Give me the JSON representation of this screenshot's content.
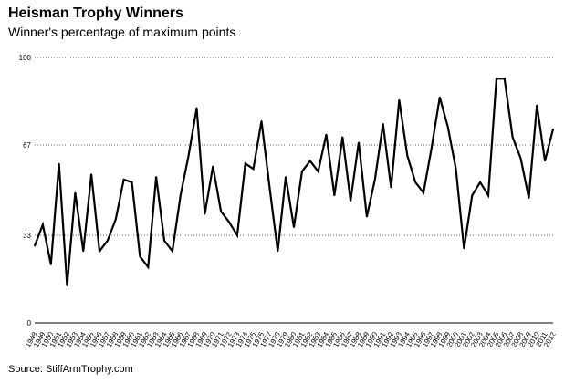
{
  "chart_data": {
    "type": "line",
    "title": "Heisman Trophy Winners",
    "subtitle": "Winner's percentage of maximum points",
    "source": "Source: StiffArmTrophy.com",
    "xlabel": "",
    "ylabel": "",
    "ylim": [
      0,
      100
    ],
    "yticks": [
      0,
      33,
      67,
      100
    ],
    "grid": true,
    "categories": [
      "1948",
      "1949",
      "1950",
      "1951",
      "1952",
      "1953",
      "1954",
      "1955",
      "1956",
      "1957",
      "1958",
      "1959",
      "1960",
      "1961",
      "1962",
      "1963",
      "1964",
      "1965",
      "1966",
      "1967",
      "1968",
      "1969",
      "1970",
      "1971",
      "1972",
      "1973",
      "1974",
      "1975",
      "1976",
      "1977",
      "1978",
      "1979",
      "1980",
      "1981",
      "1982",
      "1983",
      "1984",
      "1985",
      "1986",
      "1987",
      "1988",
      "1989",
      "1990",
      "1991",
      "1992",
      "1993",
      "1994",
      "1995",
      "1996",
      "1997",
      "1998",
      "1999",
      "2000",
      "2001",
      "2002",
      "2003",
      "2004",
      "2005",
      "2006",
      "2007",
      "2008",
      "2009",
      "2010",
      "2011",
      "2012"
    ],
    "series": [
      {
        "values": [
          29,
          37,
          22,
          60,
          14,
          49,
          27,
          56,
          27,
          31,
          39,
          54,
          53,
          25,
          21,
          55,
          31,
          27,
          48,
          63,
          81,
          41,
          59,
          42,
          38,
          33,
          60,
          58,
          76,
          51,
          27,
          55,
          36,
          57,
          61,
          57,
          71,
          48,
          70,
          46,
          68,
          40,
          54,
          75,
          51,
          84,
          63,
          53,
          49,
          66,
          85,
          74,
          58,
          28,
          48,
          53,
          48,
          92,
          92,
          70,
          62,
          47,
          82,
          61,
          73
        ]
      }
    ]
  }
}
